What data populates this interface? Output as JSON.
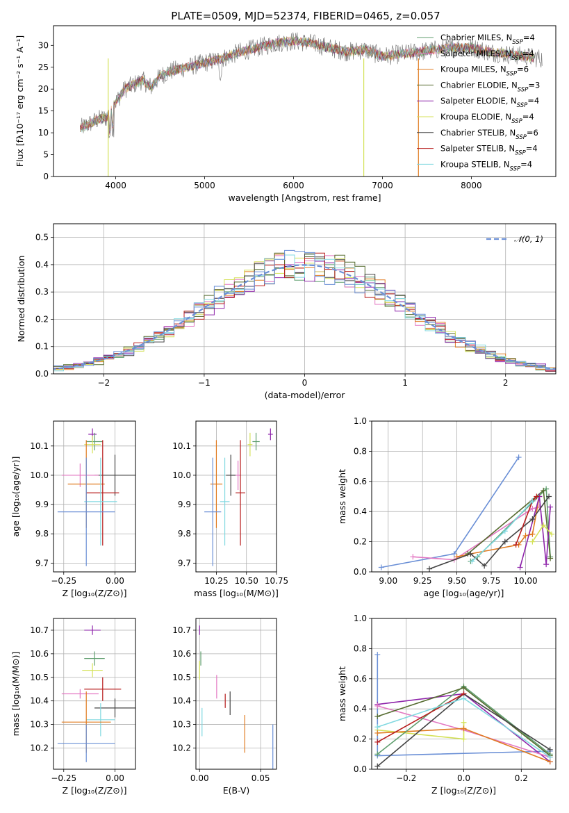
{
  "title": "PLATE=0509, MJD=52374, FIBERID=0465, z=0.057",
  "colors": {
    "c_miles": "#5f9e6e",
    "s_miles": "#e377c2",
    "k_miles": "#e07b20",
    "c_elodie": "#556b2f",
    "s_elodie": "#8e24aa",
    "k_elodie": "#d4e157",
    "c_stelib": "#444444",
    "s_stelib": "#b71c1c",
    "k_stelib": "#80d8e0",
    "blue": "#6a8fd6"
  },
  "chart_data": [
    {
      "id": "spectrum",
      "type": "line",
      "xlabel": "wavelength [Angstrom, rest frame]",
      "ylabel": "Flux [fλ10⁻¹⁷ erg cm⁻² s⁻¹ A⁻¹]",
      "xlim": [
        3300,
        8950
      ],
      "ylim": [
        0,
        34.5
      ],
      "xticks": [
        4000,
        5000,
        6000,
        7000,
        8000
      ],
      "yticks": [
        0,
        5,
        10,
        15,
        20,
        25,
        30
      ],
      "continuum": {
        "x": [
          3600,
          3700,
          3800,
          3900,
          4000,
          4100,
          4200,
          4300,
          4400,
          4500,
          4600,
          4700,
          4800,
          4900,
          5000,
          5200,
          5400,
          5600,
          5800,
          6000,
          6200,
          6400,
          6600,
          6800,
          7000,
          7200,
          7400,
          7600,
          7800,
          8000,
          8200,
          8400,
          8600,
          8800
        ],
        "y": [
          11,
          12,
          13,
          13.5,
          17,
          20,
          21,
          22,
          20.5,
          23,
          24,
          24.5,
          25,
          25.5,
          26,
          27,
          28.5,
          29.5,
          30.5,
          31,
          30.5,
          29.5,
          28.5,
          29,
          27.5,
          28,
          28.5,
          29,
          29.5,
          29.5,
          28.5,
          28,
          27.5,
          27
        ]
      },
      "spikes": [
        {
          "x": 3915,
          "color": "#d4e157"
        },
        {
          "x": 6790,
          "color": "#d4e157"
        },
        {
          "x": 7405,
          "color": "#e07b20"
        }
      ],
      "legend": [
        {
          "label": "Chabrier MILES, N",
          "sub": "SSP",
          "suffix": "=4",
          "color": "#5f9e6e"
        },
        {
          "label": "Salpeter MILES, N",
          "sub": "SSP",
          "suffix": "=4",
          "color": "#e377c2"
        },
        {
          "label": "Kroupa MILES, N",
          "sub": "SSP",
          "suffix": "=6",
          "color": "#e07b20"
        },
        {
          "label": "Chabrier ELODIE, N",
          "sub": "SSP",
          "suffix": "=3",
          "color": "#556b2f"
        },
        {
          "label": "Salpeter ELODIE, N",
          "sub": "SSP",
          "suffix": "=4",
          "color": "#8e24aa"
        },
        {
          "label": "Kroupa ELODIE, N",
          "sub": "SSP",
          "suffix": "=4",
          "color": "#d4e157"
        },
        {
          "label": "Chabrier STELIB, N",
          "sub": "SSP",
          "suffix": "=6",
          "color": "#444444"
        },
        {
          "label": "Salpeter STELIB, N",
          "sub": "SSP",
          "suffix": "=4",
          "color": "#b71c1c"
        },
        {
          "label": "Kroupa STELIB, N",
          "sub": "SSP",
          "suffix": "=4",
          "color": "#80d8e0"
        }
      ]
    },
    {
      "id": "residuals",
      "type": "histogram",
      "xlabel": "(data-model)/error",
      "ylabel": "Normed distribution",
      "xlim": [
        -2.5,
        2.5
      ],
      "ylim": [
        0,
        0.55
      ],
      "xticks": [
        -2,
        -1,
        0,
        1,
        2
      ],
      "yticks": [
        0.0,
        0.1,
        0.2,
        0.3,
        0.4,
        0.5
      ],
      "bin_width": 0.1,
      "gaussian_label": "𝒩(0, 1)",
      "gaussian_color": "#6a8fd6"
    },
    {
      "id": "age_vs_Z",
      "type": "errorbar",
      "xlabel": "Z [log₁₀(Z/Z⊙)]",
      "ylabel": "age  [log₁₀(age/yr)]",
      "xlim": [
        -0.3,
        0.1
      ],
      "ylim": [
        9.67,
        10.185
      ],
      "xticks": [
        -0.25,
        0.0
      ],
      "yticks": [
        9.7,
        9.8,
        9.9,
        10.0,
        10.1
      ],
      "points": [
        {
          "x": -0.11,
          "y": 10.14,
          "xerr": 0.02,
          "yerr": 0.02,
          "color": "#8e24aa"
        },
        {
          "x": -0.1,
          "y": 10.115,
          "xerr": 0.04,
          "yerr": 0.03,
          "color": "#5f9e6e"
        },
        {
          "x": -0.11,
          "y": 10.105,
          "xerr": 0.04,
          "yerr": 0.03,
          "color": "#d4e157"
        },
        {
          "x": 0.0,
          "y": 10.0,
          "xerr": 0.1,
          "yerr": 0.07,
          "color": "#444444"
        },
        {
          "x": -0.17,
          "y": 10.0,
          "xerr": 0.09,
          "yerr": 0.04,
          "color": "#e377c2"
        },
        {
          "x": -0.14,
          "y": 9.97,
          "xerr": 0.09,
          "yerr": 0.15,
          "color": "#e07b20"
        },
        {
          "x": -0.06,
          "y": 9.94,
          "xerr": 0.08,
          "yerr": 0.18,
          "color": "#b71c1c"
        },
        {
          "x": -0.07,
          "y": 9.91,
          "xerr": 0.08,
          "yerr": 0.15,
          "color": "#80d8e0"
        },
        {
          "x": -0.14,
          "y": 9.875,
          "xerr": 0.14,
          "yerr": 0.185,
          "color": "#6a8fd6"
        }
      ]
    },
    {
      "id": "age_vs_mass",
      "type": "errorbar",
      "xlabel": "mass [log₁₀(M/M⊙)]",
      "ylabel": "",
      "xlim": [
        10.08,
        10.75
      ],
      "ylim": [
        9.67,
        10.185
      ],
      "xticks": [
        10.25,
        10.5,
        10.75
      ],
      "yticks": [
        9.7,
        9.8,
        9.9,
        10.0,
        10.1
      ],
      "points": [
        {
          "x": 10.7,
          "y": 10.14,
          "xerr": 0.02,
          "yerr": 0.02,
          "color": "#8e24aa"
        },
        {
          "x": 10.58,
          "y": 10.115,
          "xerr": 0.03,
          "yerr": 0.03,
          "color": "#5f9e6e"
        },
        {
          "x": 10.53,
          "y": 10.105,
          "xerr": 0.02,
          "yerr": 0.04,
          "color": "#d4e157"
        },
        {
          "x": 10.37,
          "y": 10.0,
          "xerr": 0.04,
          "yerr": 0.07,
          "color": "#444444"
        },
        {
          "x": 10.43,
          "y": 10.0,
          "xerr": 0.02,
          "yerr": 0.05,
          "color": "#e377c2"
        },
        {
          "x": 10.25,
          "y": 9.97,
          "xerr": 0.05,
          "yerr": 0.15,
          "color": "#e07b20"
        },
        {
          "x": 10.45,
          "y": 9.94,
          "xerr": 0.04,
          "yerr": 0.18,
          "color": "#b71c1c"
        },
        {
          "x": 10.32,
          "y": 9.91,
          "xerr": 0.04,
          "yerr": 0.15,
          "color": "#80d8e0"
        },
        {
          "x": 10.22,
          "y": 9.875,
          "xerr": 0.07,
          "yerr": 0.185,
          "color": "#6a8fd6"
        }
      ]
    },
    {
      "id": "weight_vs_age",
      "type": "line",
      "xlabel": "age  [log₁₀(age/yr)]",
      "ylabel": "mass weight",
      "xlim": [
        8.88,
        10.22
      ],
      "ylim": [
        0,
        1.0
      ],
      "xticks": [
        9.0,
        9.25,
        9.5,
        9.75,
        10.0
      ],
      "yticks": [
        0.0,
        0.2,
        0.4,
        0.6,
        0.8,
        1.0
      ],
      "series": [
        {
          "color": "#6a8fd6",
          "x": [
            8.95,
            9.48,
            9.95
          ],
          "y": [
            0.03,
            0.12,
            0.76
          ]
        },
        {
          "color": "#e377c2",
          "x": [
            9.18,
            9.48,
            10.05,
            10.1
          ],
          "y": [
            0.1,
            0.08,
            0.42,
            0.43
          ]
        },
        {
          "color": "#e07b20",
          "x": [
            9.5,
            9.6,
            9.95,
            10.0,
            10.05,
            10.1
          ],
          "y": [
            0.1,
            0.12,
            0.18,
            0.24,
            0.25,
            0.5
          ]
        },
        {
          "color": "#5f9e6e",
          "x": [
            9.6,
            9.65,
            10.15,
            10.18
          ],
          "y": [
            0.07,
            0.1,
            0.55,
            0.1
          ]
        },
        {
          "color": "#556b2f",
          "x": [
            9.58,
            10.13,
            10.18
          ],
          "y": [
            0.12,
            0.54,
            0.09
          ]
        },
        {
          "color": "#8e24aa",
          "x": [
            9.96,
            10.1,
            10.15,
            10.18
          ],
          "y": [
            0.03,
            0.5,
            0.05,
            0.43
          ]
        },
        {
          "color": "#d4e157",
          "x": [
            10.05,
            10.13,
            10.19
          ],
          "y": [
            0.2,
            0.31,
            0.25
          ]
        },
        {
          "color": "#444444",
          "x": [
            9.3,
            9.6,
            9.7,
            9.85,
            10.05,
            10.17
          ],
          "y": [
            0.02,
            0.12,
            0.04,
            0.2,
            0.35,
            0.5
          ]
        },
        {
          "color": "#b71c1c",
          "x": [
            9.93,
            10.05,
            10.08
          ],
          "y": [
            0.18,
            0.47,
            0.5
          ]
        },
        {
          "color": "#80d8e0",
          "x": [
            9.61,
            9.85,
            10.05
          ],
          "y": [
            0.07,
            0.27,
            0.47
          ]
        }
      ]
    },
    {
      "id": "mass_vs_Z",
      "type": "errorbar",
      "xlabel": "Z [log₁₀(Z/Z⊙)]",
      "ylabel": "mass [log₁₀(M/M⊙)]",
      "xlim": [
        -0.3,
        0.1
      ],
      "ylim": [
        10.11,
        10.75
      ],
      "xticks": [
        -0.25,
        0.0
      ],
      "yticks": [
        10.2,
        10.3,
        10.4,
        10.5,
        10.6,
        10.7
      ],
      "points": [
        {
          "x": -0.11,
          "y": 10.7,
          "xerr": 0.04,
          "yerr": 0.02,
          "color": "#8e24aa"
        },
        {
          "x": -0.1,
          "y": 10.58,
          "xerr": 0.05,
          "yerr": 0.03,
          "color": "#5f9e6e"
        },
        {
          "x": -0.11,
          "y": 10.53,
          "xerr": 0.05,
          "yerr": 0.03,
          "color": "#d4e157"
        },
        {
          "x": -0.06,
          "y": 10.45,
          "xerr": 0.09,
          "yerr": 0.05,
          "color": "#b71c1c"
        },
        {
          "x": -0.17,
          "y": 10.43,
          "xerr": 0.09,
          "yerr": 0.02,
          "color": "#e377c2"
        },
        {
          "x": 0.0,
          "y": 10.37,
          "xerr": 0.1,
          "yerr": 0.04,
          "color": "#444444"
        },
        {
          "x": -0.07,
          "y": 10.32,
          "xerr": 0.07,
          "yerr": 0.07,
          "color": "#80d8e0"
        },
        {
          "x": -0.14,
          "y": 10.31,
          "xerr": 0.12,
          "yerr": 0.13,
          "color": "#e07b20"
        },
        {
          "x": -0.14,
          "y": 10.22,
          "xerr": 0.14,
          "yerr": 0.08,
          "color": "#6a8fd6"
        }
      ]
    },
    {
      "id": "mass_vs_EBV",
      "type": "errorbar",
      "xlabel": "E(B-V)",
      "ylabel": "",
      "xlim": [
        -0.003,
        0.063
      ],
      "ylim": [
        10.11,
        10.75
      ],
      "xticks": [
        0.0,
        0.05
      ],
      "yticks": [
        10.2,
        10.3,
        10.4,
        10.5,
        10.6,
        10.7
      ],
      "points": [
        {
          "x": 0.0,
          "y": 10.7,
          "xerr": 0.0,
          "yerr": 0.02,
          "color": "#8e24aa"
        },
        {
          "x": 0.001,
          "y": 10.58,
          "xerr": 0.0,
          "yerr": 0.03,
          "color": "#5f9e6e"
        },
        {
          "x": 0.0,
          "y": 10.53,
          "xerr": 0.0,
          "yerr": 0.04,
          "color": "#d4e157"
        },
        {
          "x": 0.014,
          "y": 10.46,
          "xerr": 0.0,
          "yerr": 0.05,
          "color": "#e377c2"
        },
        {
          "x": 0.025,
          "y": 10.39,
          "xerr": 0.0,
          "yerr": 0.05,
          "color": "#444444"
        },
        {
          "x": 0.021,
          "y": 10.4,
          "xerr": 0.0,
          "yerr": 0.03,
          "color": "#b71c1c"
        },
        {
          "x": 0.002,
          "y": 10.31,
          "xerr": 0.0,
          "yerr": 0.06,
          "color": "#80d8e0"
        },
        {
          "x": 0.037,
          "y": 10.26,
          "xerr": 0.0,
          "yerr": 0.08,
          "color": "#e07b20"
        },
        {
          "x": 0.06,
          "y": 10.2,
          "xerr": 0.0,
          "yerr": 0.1,
          "color": "#6a8fd6"
        }
      ]
    },
    {
      "id": "weight_vs_Z",
      "type": "line",
      "xlabel": "Z [log₁₀(Z/Z⊙)]",
      "ylabel": "mass weight",
      "xlim": [
        -0.32,
        0.32
      ],
      "ylim": [
        0,
        1.0
      ],
      "xticks": [
        -0.2,
        0.0,
        0.2
      ],
      "yticks": [
        0.0,
        0.2,
        0.4,
        0.6,
        0.8,
        1.0
      ],
      "series": [
        {
          "color": "#6a8fd6",
          "x": [
            -0.3,
            -0.3,
            0.3
          ],
          "y": [
            0.76,
            0.09,
            0.12
          ]
        },
        {
          "color": "#8e24aa",
          "x": [
            -0.3,
            0.0,
            0.3
          ],
          "y": [
            0.43,
            0.5,
            0.05
          ]
        },
        {
          "color": "#e377c2",
          "x": [
            -0.3,
            0.0,
            0.3
          ],
          "y": [
            0.42,
            0.26,
            0.08
          ]
        },
        {
          "color": "#d4e157",
          "x": [
            -0.3,
            0.0,
            0.0
          ],
          "y": [
            0.26,
            0.2,
            0.31
          ]
        },
        {
          "color": "#e07b20",
          "x": [
            -0.3,
            0.0,
            0.3
          ],
          "y": [
            0.24,
            0.27,
            0.05
          ]
        },
        {
          "color": "#5f9e6e",
          "x": [
            -0.3,
            0.0,
            0.3
          ],
          "y": [
            0.1,
            0.55,
            0.1
          ]
        },
        {
          "color": "#556b2f",
          "x": [
            -0.3,
            0.0,
            0.3
          ],
          "y": [
            0.35,
            0.54,
            0.09
          ]
        },
        {
          "color": "#444444",
          "x": [
            -0.3,
            0.0,
            0.3
          ],
          "y": [
            0.02,
            0.5,
            0.13
          ]
        },
        {
          "color": "#b71c1c",
          "x": [
            -0.3,
            0.0
          ],
          "y": [
            0.18,
            0.5
          ]
        },
        {
          "color": "#80d8e0",
          "x": [
            -0.3,
            0.0,
            0.3
          ],
          "y": [
            0.28,
            0.47,
            0.08
          ]
        }
      ]
    }
  ]
}
